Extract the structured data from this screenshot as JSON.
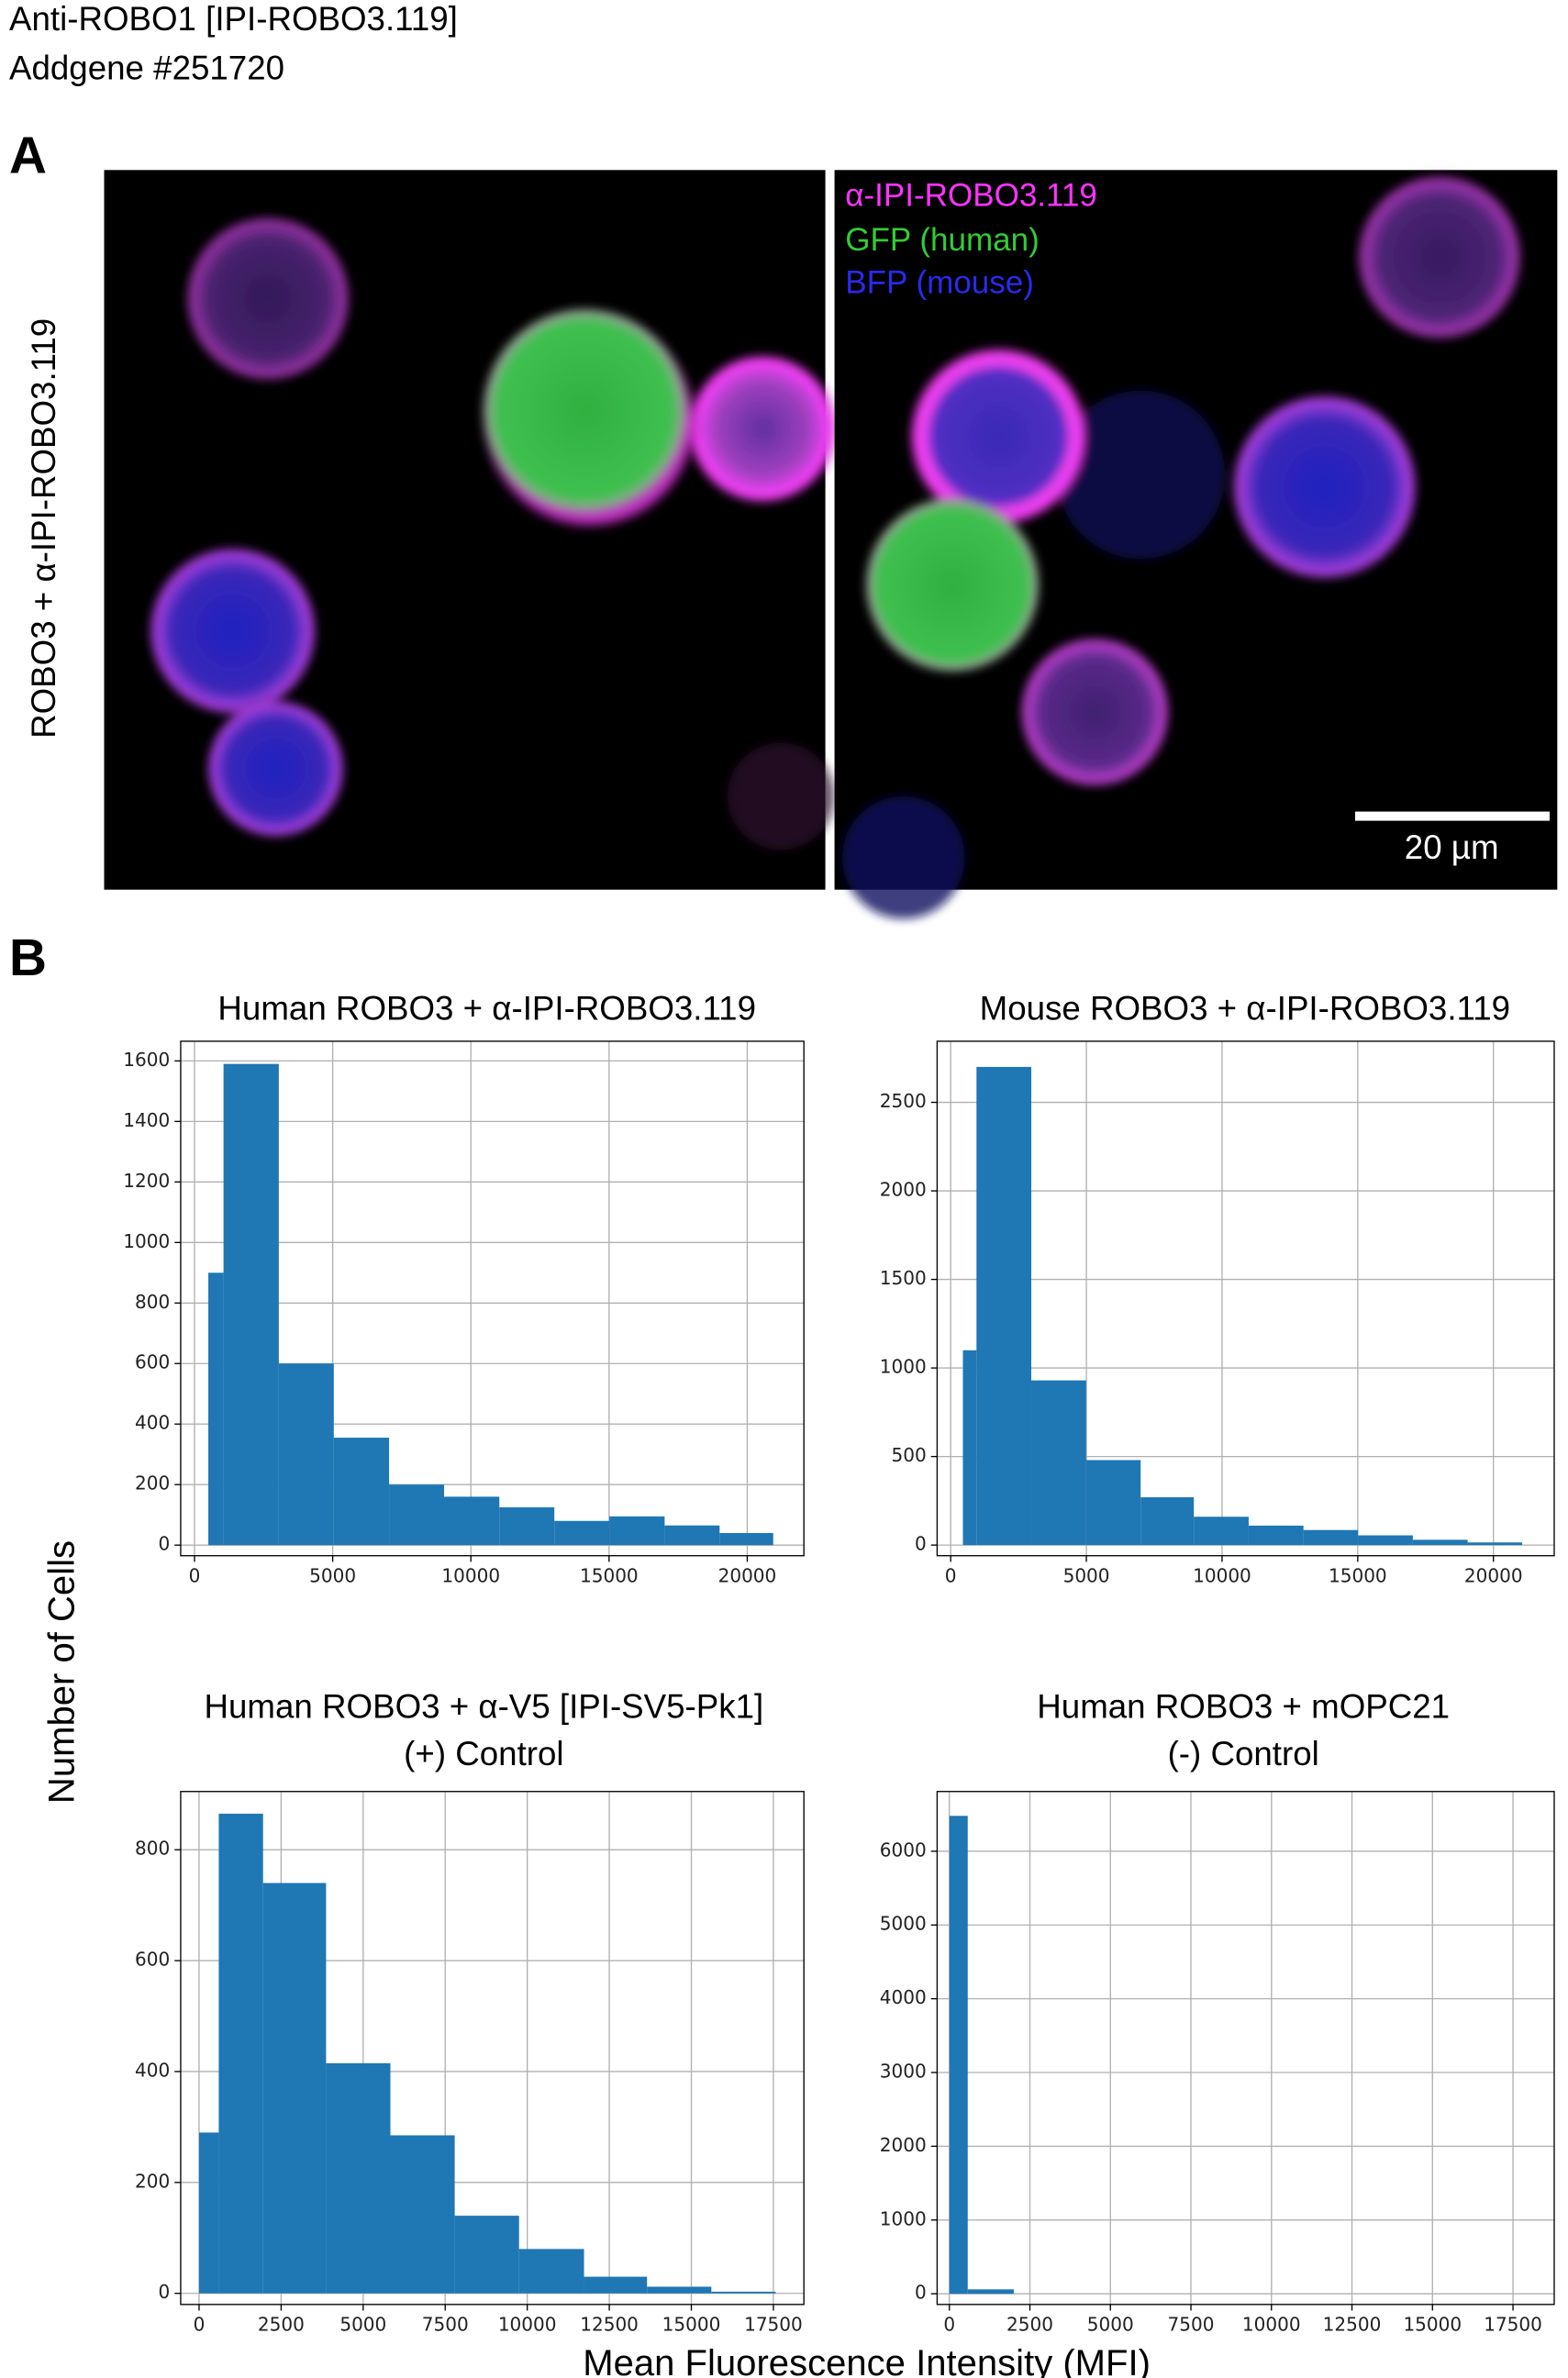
{
  "header": {
    "title": "Anti-ROBO1 [IPI-ROBO3.119]",
    "subtitle": "Addgene #251720"
  },
  "panel_a": {
    "label": "A",
    "row_label": "ROBO3 + α-IPI-ROBO3.119",
    "legend": [
      {
        "name": "α-IPI-ROBO3.119",
        "color": "#ff33ff"
      },
      {
        "name": "GFP (human)",
        "color": "#33cc33"
      },
      {
        "name": "BFP (mouse)",
        "color": "#2a2aee"
      }
    ],
    "scale_bar": "20 µm"
  },
  "panel_b": {
    "label": "B",
    "ylabel": "Number of Cells",
    "xlabel": "Mean Fluorescence Intensity (MFI)"
  },
  "chart_data": [
    {
      "type": "histogram",
      "title": [
        "Human ROBO3 + α-IPI-ROBO3.119"
      ],
      "color": "#1f77b4",
      "grid": true,
      "bins": [
        500,
        1050,
        3050,
        5040,
        7040,
        9030,
        11030,
        13020,
        15010,
        17010,
        19000,
        20940
      ],
      "counts": [
        900,
        1590,
        600,
        355,
        200,
        160,
        125,
        80,
        95,
        65,
        40
      ],
      "xlim": [
        -500,
        22050
      ],
      "ylim": [
        -35,
        1665
      ],
      "xticks": [
        0,
        5000,
        10000,
        15000,
        20000
      ],
      "yticks": [
        0,
        200,
        400,
        600,
        800,
        1000,
        1200,
        1400,
        1600
      ]
    },
    {
      "type": "histogram",
      "title": [
        "Mouse ROBO3 + α-IPI-ROBO3.119"
      ],
      "color": "#1f77b4",
      "grid": true,
      "bins": [
        450,
        950,
        2970,
        4990,
        7000,
        8960,
        10980,
        13000,
        15010,
        17030,
        19050,
        21060
      ],
      "counts": [
        1100,
        2700,
        930,
        480,
        270,
        160,
        110,
        85,
        55,
        30,
        15
      ],
      "xlim": [
        -500,
        22240
      ],
      "ylim": [
        -60,
        2845
      ],
      "xticks": [
        0,
        5000,
        10000,
        15000,
        20000
      ],
      "yticks": [
        0,
        500,
        1000,
        1500,
        2000,
        2500
      ]
    },
    {
      "type": "histogram",
      "title": [
        "Human ROBO3 + α-V5 [IPI-SV5-Pk1]",
        "(+) Control"
      ],
      "color": "#1f77b4",
      "grid": true,
      "bins": [
        0,
        600,
        1950,
        3870,
        5830,
        7790,
        9750,
        11730,
        13650,
        15610,
        17570
      ],
      "counts": [
        290,
        865,
        740,
        415,
        285,
        140,
        80,
        30,
        12,
        3
      ],
      "xlim": [
        -560,
        18430
      ],
      "ylim": [
        -20,
        905
      ],
      "xticks": [
        0,
        2500,
        5000,
        7500,
        10000,
        12500,
        15000,
        17500
      ],
      "yticks": [
        0,
        200,
        400,
        600,
        800
      ]
    },
    {
      "type": "histogram",
      "title": [
        "Human ROBO3 + mOPC21",
        "(-) Control"
      ],
      "color": "#1f77b4",
      "grid": true,
      "bins": [
        0,
        570,
        2000
      ],
      "counts": [
        6480,
        60
      ],
      "xlim": [
        -380,
        18780
      ],
      "ylim": [
        -145,
        6810
      ],
      "xticks": [
        0,
        2500,
        5000,
        7500,
        10000,
        12500,
        15000,
        17500
      ],
      "yticks": [
        0,
        1000,
        2000,
        3000,
        4000,
        5000,
        6000
      ]
    }
  ]
}
